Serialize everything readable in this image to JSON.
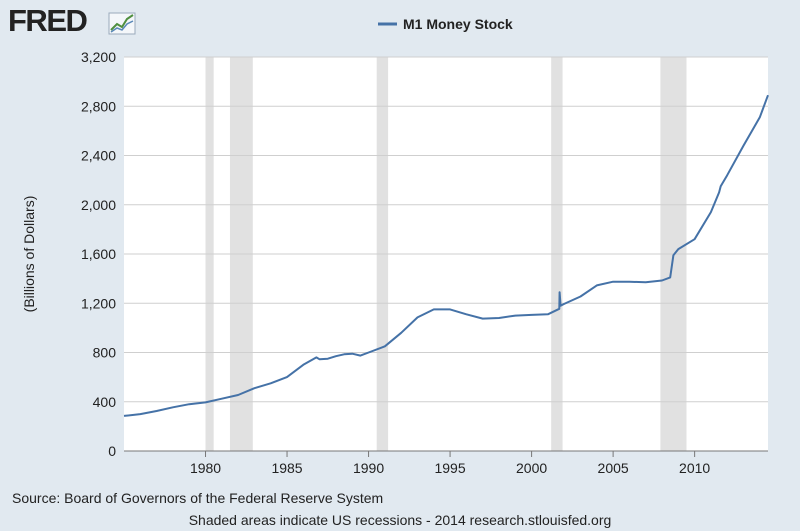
{
  "logo": {
    "text": "FRED"
  },
  "footer": {
    "source": "Source: Board of Governors of the Federal Reserve System",
    "shaded": "Shaded areas indicate US recessions - 2014 research.stlouisfed.org"
  },
  "colors": {
    "line": "#4572a7",
    "recession": "#e1e1e1",
    "plot_bg": "#ffffff",
    "page_bg": "#e1e9f0"
  },
  "chart_data": {
    "type": "line",
    "title": "",
    "xlabel": "",
    "ylabel": "(Billions of Dollars)",
    "xlim": [
      1975.0,
      2014.5
    ],
    "ylim": [
      0,
      3200
    ],
    "grid": true,
    "legend_position": "top-center",
    "x_ticks": [
      1980,
      1985,
      1990,
      1995,
      2000,
      2005,
      2010
    ],
    "y_ticks": [
      0,
      400,
      800,
      1200,
      1600,
      2000,
      2400,
      2800,
      3200
    ],
    "y_tick_labels": [
      "0",
      "400",
      "800",
      "1,200",
      "1,600",
      "2,000",
      "2,400",
      "2,800",
      "3,200"
    ],
    "recessions": [
      [
        1980.0,
        1980.5
      ],
      [
        1981.5,
        1982.9
      ],
      [
        1990.5,
        1991.2
      ],
      [
        2001.2,
        2001.9
      ],
      [
        2007.9,
        2009.5
      ]
    ],
    "series": [
      {
        "name": "M1 Money Stock",
        "x": [
          1975.0,
          1976.0,
          1977.0,
          1978.0,
          1979.0,
          1980.0,
          1981.0,
          1982.0,
          1983.0,
          1984.0,
          1985.0,
          1986.0,
          1986.8,
          1987.0,
          1987.5,
          1988.0,
          1988.5,
          1989.0,
          1989.5,
          1990.0,
          1991.0,
          1992.0,
          1993.0,
          1994.0,
          1995.0,
          1996.0,
          1997.0,
          1998.0,
          1999.0,
          2000.0,
          2001.0,
          2001.7,
          2001.72,
          2001.78,
          2002.0,
          2003.0,
          2004.0,
          2005.0,
          2006.0,
          2007.0,
          2008.0,
          2008.5,
          2008.7,
          2009.0,
          2010.0,
          2011.0,
          2011.5,
          2011.6,
          2012.0,
          2013.0,
          2014.0,
          2014.5
        ],
        "values": [
          285,
          300,
          325,
          355,
          380,
          395,
          425,
          455,
          510,
          550,
          600,
          700,
          760,
          745,
          750,
          770,
          785,
          790,
          775,
          800,
          850,
          960,
          1085,
          1150,
          1150,
          1110,
          1075,
          1080,
          1100,
          1105,
          1110,
          1155,
          1290,
          1180,
          1195,
          1255,
          1345,
          1375,
          1375,
          1370,
          1385,
          1410,
          1590,
          1640,
          1720,
          1940,
          2100,
          2150,
          2240,
          2480,
          2710,
          2890
        ]
      }
    ]
  }
}
